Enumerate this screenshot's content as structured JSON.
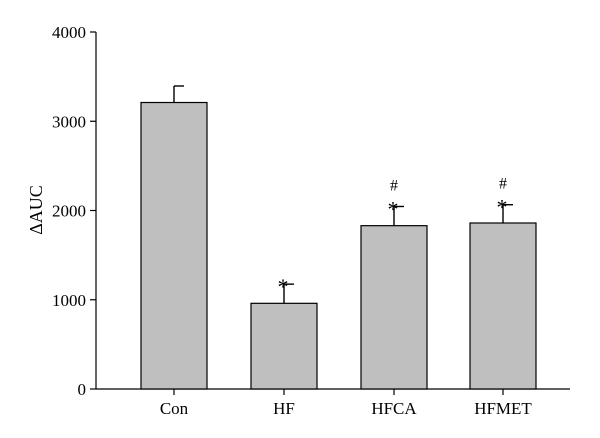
{
  "chart_data": {
    "type": "bar",
    "title": "",
    "xlabel": "",
    "ylabel": "ΔAUC",
    "categories": [
      "Con",
      "HF",
      "HFCA",
      "HFMET"
    ],
    "values": [
      3210,
      960,
      1830,
      1860
    ],
    "errors": [
      185,
      215,
      215,
      205
    ],
    "annotations": [
      [],
      [
        "*"
      ],
      [
        "*",
        "#"
      ],
      [
        "*",
        "#"
      ]
    ],
    "ylim": [
      0,
      4000
    ],
    "yticks": [
      0,
      1000,
      2000,
      3000,
      4000
    ],
    "grid": false,
    "colors": {
      "bar": "#bfbfbf",
      "edge": "#000000"
    }
  }
}
